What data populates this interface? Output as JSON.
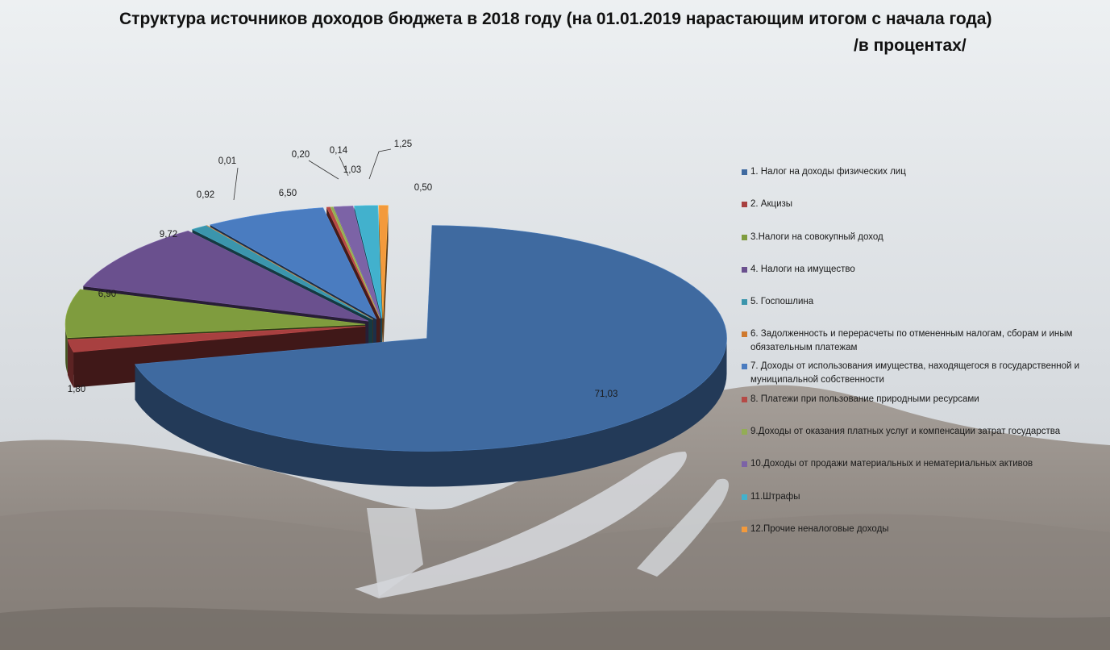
{
  "title": {
    "line1": "Структура источников доходов бюджета в 2018 году (на 01.01.2019 нарастающим итогом с начала года)",
    "line2": "/в процентах/"
  },
  "chart_data": {
    "type": "pie",
    "variant": "3d-exploded",
    "legend_position": "right",
    "slices": [
      {
        "label": "1. Налог на  доходы физических  лиц",
        "value": 71.03,
        "display": "71,03",
        "color": "#3f6aa0"
      },
      {
        "label": "2. Акцизы",
        "value": 1.8,
        "display": "1,80",
        "color": "#a84040"
      },
      {
        "label": "3.Налоги на совокупный доход",
        "value": 6.9,
        "display": "6,90",
        "color": "#7f9c3e"
      },
      {
        "label": "4. Налоги на имущество",
        "value": 9.72,
        "display": "9,72",
        "color": "#6a508e"
      },
      {
        "label": "5. Госпошлина",
        "value": 0.92,
        "display": "0,92",
        "color": "#3b95ac"
      },
      {
        "label": "6. Задолженность и перерасчеты по отмененным налогам, сборам и иным обязательным платежам",
        "value": 0.01,
        "display": "0,01",
        "color": "#cf7a2f"
      },
      {
        "label": "7. Доходы от использования имущества, находящегося в государственной и муниципальной собственности",
        "value": 6.5,
        "display": "6,50",
        "color": "#4a7cc0"
      },
      {
        "label": "8. Платежи при пользование природными ресурсами",
        "value": 0.2,
        "display": "0,20",
        "color": "#b54a46"
      },
      {
        "label": "9.Доходы от оказания платных услуг и компенсации затрат государства",
        "value": 0.14,
        "display": "0,14",
        "color": "#93ad55"
      },
      {
        "label": "10.Доходы от продажи материальных и нематериальных активов",
        "value": 1.03,
        "display": "1,03",
        "color": "#7c63a6"
      },
      {
        "label": "11.Штрафы",
        "value": 1.25,
        "display": "1,25",
        "color": "#42b1cd"
      },
      {
        "label": "12.Прочие неналоговые доходы",
        "value": 0.5,
        "display": "0,50",
        "color": "#f39a3c"
      }
    ]
  }
}
